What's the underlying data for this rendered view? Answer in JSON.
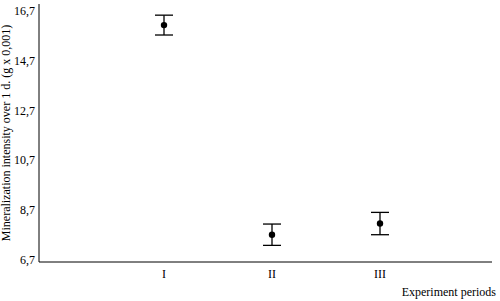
{
  "chart_data": {
    "type": "point",
    "categories": [
      "I",
      "II",
      "III"
    ],
    "values": [
      16.15,
      7.7,
      8.15
    ],
    "errors": [
      0.4,
      0.43,
      0.45
    ],
    "color": "#000000",
    "x_label": "Experiment periods",
    "y_label": "Mineralization intensity over 1 d. (g x 0,001)",
    "ylim": [
      6.6,
      17.0
    ],
    "yticks": [
      {
        "value": 6.7,
        "label": "6,7"
      },
      {
        "value": 8.7,
        "label": "8,7"
      },
      {
        "value": 10.7,
        "label": "10,7"
      },
      {
        "value": 12.7,
        "label": "12,7"
      },
      {
        "value": 14.7,
        "label": "14,7"
      },
      {
        "value": 16.7,
        "label": "16,7"
      }
    ],
    "grid": false
  }
}
